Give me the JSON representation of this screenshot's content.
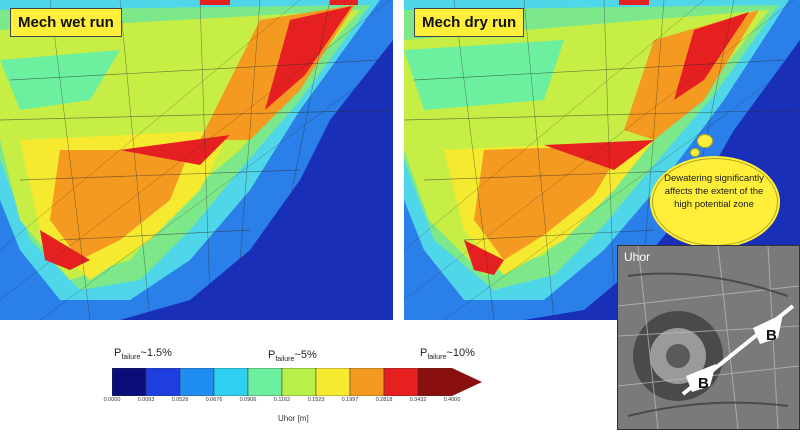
{
  "panels": {
    "wet": {
      "label": "Mech wet run"
    },
    "dry": {
      "label": "Mech dry run"
    }
  },
  "callout": {
    "text": "Dewatering significantly affects the extent of the high potential zone"
  },
  "inset": {
    "title": "Uhor",
    "markers": [
      "B",
      "B"
    ]
  },
  "legend": {
    "probabilities": [
      {
        "prefix": "P",
        "sub": "failure",
        "value": "~1.5%"
      },
      {
        "prefix": "P",
        "sub": "failure",
        "value": "~5%"
      },
      {
        "prefix": "P",
        "sub": "failure",
        "value": "~10%"
      }
    ],
    "colors": [
      "#0d0d7a",
      "#1f3ee0",
      "#1f8ef0",
      "#2fd0ef",
      "#6cf0a0",
      "#b8f04a",
      "#f5ea30",
      "#f59a20",
      "#e62020",
      "#8a1010"
    ],
    "ticks": [
      "0.0000",
      "0.0093",
      "0.0526",
      "0.0676",
      "0.0906",
      "0.1162",
      "0.1523",
      "0.1997",
      "0.2818",
      "0.3432",
      "0.4000"
    ],
    "unit": "Uhor [m]"
  },
  "colors": {
    "background_blue": "#1a2fb8",
    "label_yellow": "#ffef3a"
  }
}
